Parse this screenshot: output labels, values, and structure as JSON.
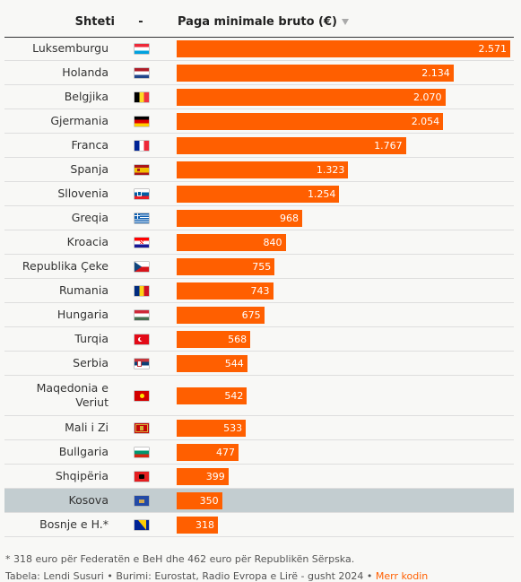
{
  "header": {
    "country_col": "Shteti",
    "flag_col": "-",
    "value_col": "Paga minimale bruto (€)"
  },
  "chart_data": {
    "type": "bar",
    "orientation": "horizontal",
    "unit": "€",
    "xlim": [
      0,
      2571
    ],
    "categories": [
      "Luksemburgu",
      "Holanda",
      "Belgjika",
      "Gjermania",
      "Franca",
      "Spanja",
      "Sllovenia",
      "Greqia",
      "Kroacia",
      "Republika Çeke",
      "Rumania",
      "Hungaria",
      "Turqia",
      "Serbia",
      "Maqedonia e Veriut",
      "Mali i Zi",
      "Bullgaria",
      "Shqipëria",
      "Kosova",
      "Bosnje e H.*"
    ],
    "values": [
      2571,
      2134,
      2070,
      2054,
      1767,
      1323,
      1254,
      968,
      840,
      755,
      743,
      675,
      568,
      544,
      542,
      533,
      477,
      399,
      350,
      318
    ],
    "labels": [
      "2.571",
      "2.134",
      "2.070",
      "2.054",
      "1.767",
      "1.323",
      "1.254",
      "968",
      "840",
      "755",
      "743",
      "675",
      "568",
      "544",
      "542",
      "533",
      "477",
      "399",
      "350",
      "318"
    ],
    "flags": [
      "lu",
      "nl",
      "be",
      "de",
      "fr",
      "es",
      "si",
      "gr",
      "hr",
      "cz",
      "ro",
      "hu",
      "tr",
      "rs",
      "mk",
      "me",
      "bg",
      "al",
      "xk",
      "ba"
    ],
    "highlight": "Kosova",
    "bar_color": "#ff5f00",
    "highlight_row_color": "#c3cdd0"
  },
  "footer": {
    "note": "* 318 euro për Federatën e BeH dhe 462 euro për Republikën Sërpska.",
    "source": "Tabela: Lendi Susuri  • Burimi: Eurostat, Radio Evropa e Lirë - gusht 2024 • ",
    "link": "Merr kodin"
  }
}
